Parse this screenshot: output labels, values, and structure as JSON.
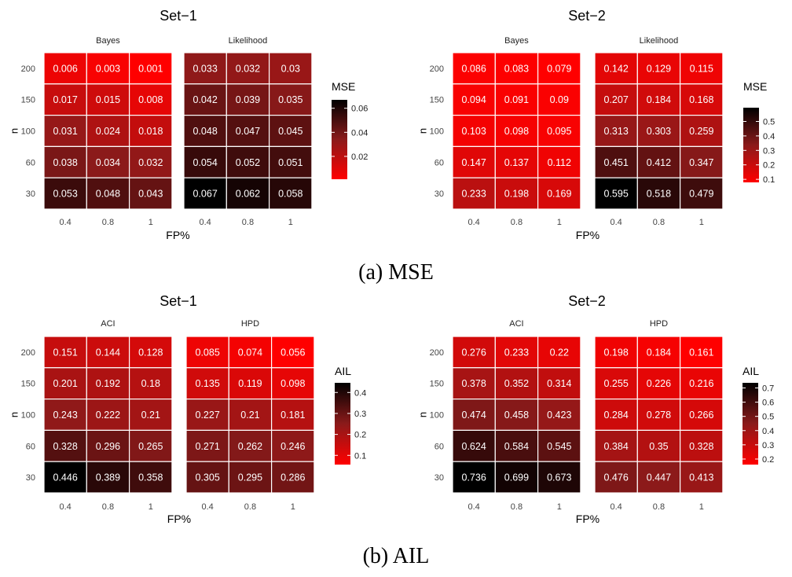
{
  "chart_data": [
    {
      "type": "heatmap",
      "title": "Set−1",
      "panels": [
        {
          "label": "Bayes",
          "values": [
            [
              0.006,
              0.003,
              0.001
            ],
            [
              0.017,
              0.015,
              0.008
            ],
            [
              0.031,
              0.024,
              0.018
            ],
            [
              0.038,
              0.034,
              0.032
            ],
            [
              0.053,
              0.048,
              0.043
            ]
          ],
          "labels": [
            [
              "0.006",
              "0.003",
              "0.001"
            ],
            [
              "0.017",
              "0.015",
              "0.008"
            ],
            [
              "0.031",
              "0.024",
              "0.018"
            ],
            [
              "0.038",
              "0.034",
              "0.032"
            ],
            [
              "0.053",
              "0.048",
              "0.043"
            ]
          ]
        },
        {
          "label": "Likelihood",
          "values": [
            [
              0.033,
              0.032,
              0.03
            ],
            [
              0.042,
              0.039,
              0.035
            ],
            [
              0.048,
              0.047,
              0.045
            ],
            [
              0.054,
              0.052,
              0.051
            ],
            [
              0.067,
              0.062,
              0.058
            ]
          ],
          "labels": [
            [
              "0.033",
              "0.032",
              "0.03"
            ],
            [
              "0.042",
              "0.039",
              "0.035"
            ],
            [
              "0.048",
              "0.047",
              "0.045"
            ],
            [
              "0.054",
              "0.052",
              "0.051"
            ],
            [
              "0.067",
              "0.062",
              "0.058"
            ]
          ]
        }
      ],
      "xlabel": "FP%",
      "ylabel": "n",
      "x_categories": [
        "0.4",
        "0.8",
        "1"
      ],
      "y_categories": [
        "200",
        "150",
        "100",
        "60",
        "30"
      ],
      "legend_title": "MSE",
      "legend_ticks": [
        {
          "value": 0.02,
          "label": "0.02"
        },
        {
          "value": 0.04,
          "label": "0.04"
        },
        {
          "value": 0.06,
          "label": "0.06"
        }
      ],
      "color_range": [
        0.001,
        0.067
      ],
      "color_low": "#ff0000",
      "color_mid": "#8b1a1a",
      "color_high": "#000000"
    },
    {
      "type": "heatmap",
      "title": "Set−2",
      "panels": [
        {
          "label": "Bayes",
          "values": [
            [
              0.086,
              0.083,
              0.079
            ],
            [
              0.094,
              0.091,
              0.09
            ],
            [
              0.103,
              0.098,
              0.095
            ],
            [
              0.147,
              0.137,
              0.112
            ],
            [
              0.233,
              0.198,
              0.169
            ]
          ],
          "labels": [
            [
              "0.086",
              "0.083",
              "0.079"
            ],
            [
              "0.094",
              "0.091",
              "0.09"
            ],
            [
              "0.103",
              "0.098",
              "0.095"
            ],
            [
              "0.147",
              "0.137",
              "0.112"
            ],
            [
              "0.233",
              "0.198",
              "0.169"
            ]
          ]
        },
        {
          "label": "Likelihood",
          "values": [
            [
              0.142,
              0.129,
              0.115
            ],
            [
              0.207,
              0.184,
              0.168
            ],
            [
              0.313,
              0.303,
              0.259
            ],
            [
              0.451,
              0.412,
              0.347
            ],
            [
              0.595,
              0.518,
              0.479
            ]
          ],
          "labels": [
            [
              "0.142",
              "0.129",
              "0.115"
            ],
            [
              "0.207",
              "0.184",
              "0.168"
            ],
            [
              "0.313",
              "0.303",
              "0.259"
            ],
            [
              "0.451",
              "0.412",
              "0.347"
            ],
            [
              "0.595",
              "0.518",
              "0.479"
            ]
          ]
        }
      ],
      "xlabel": "FP%",
      "ylabel": "n",
      "x_categories": [
        "0.4",
        "0.8",
        "1"
      ],
      "y_categories": [
        "200",
        "150",
        "100",
        "60",
        "30"
      ],
      "legend_title": "MSE",
      "legend_ticks": [
        {
          "value": 0.1,
          "label": "0.1"
        },
        {
          "value": 0.2,
          "label": "0.2"
        },
        {
          "value": 0.3,
          "label": "0.3"
        },
        {
          "value": 0.4,
          "label": "0.4"
        },
        {
          "value": 0.5,
          "label": "0.5"
        }
      ],
      "color_range": [
        0.079,
        0.595
      ],
      "color_low": "#ff0000",
      "color_mid": "#8b1a1a",
      "color_high": "#000000"
    },
    {
      "type": "heatmap",
      "title": "Set−1",
      "panels": [
        {
          "label": "ACI",
          "values": [
            [
              0.151,
              0.144,
              0.128
            ],
            [
              0.201,
              0.192,
              0.18
            ],
            [
              0.243,
              0.222,
              0.21
            ],
            [
              0.328,
              0.296,
              0.265
            ],
            [
              0.446,
              0.389,
              0.358
            ]
          ],
          "labels": [
            [
              "0.151",
              "0.144",
              "0.128"
            ],
            [
              "0.201",
              "0.192",
              "0.18"
            ],
            [
              "0.243",
              "0.222",
              "0.21"
            ],
            [
              "0.328",
              "0.296",
              "0.265"
            ],
            [
              "0.446",
              "0.389",
              "0.358"
            ]
          ]
        },
        {
          "label": "HPD",
          "values": [
            [
              0.085,
              0.074,
              0.056
            ],
            [
              0.135,
              0.119,
              0.098
            ],
            [
              0.227,
              0.21,
              0.181
            ],
            [
              0.271,
              0.262,
              0.246
            ],
            [
              0.305,
              0.295,
              0.286
            ]
          ],
          "labels": [
            [
              "0.085",
              "0.074",
              "0.056"
            ],
            [
              "0.135",
              "0.119",
              "0.098"
            ],
            [
              "0.227",
              "0.21",
              "0.181"
            ],
            [
              "0.271",
              "0.262",
              "0.246"
            ],
            [
              "0.305",
              "0.295",
              "0.286"
            ]
          ]
        }
      ],
      "xlabel": "FP%",
      "ylabel": "n",
      "x_categories": [
        "0.4",
        "0.8",
        "1"
      ],
      "y_categories": [
        "200",
        "150",
        "100",
        "60",
        "30"
      ],
      "legend_title": "AIL",
      "legend_ticks": [
        {
          "value": 0.1,
          "label": "0.1"
        },
        {
          "value": 0.2,
          "label": "0.2"
        },
        {
          "value": 0.3,
          "label": "0.3"
        },
        {
          "value": 0.4,
          "label": "0.4"
        }
      ],
      "color_range": [
        0.056,
        0.446
      ],
      "color_low": "#ff0000",
      "color_mid": "#8b1a1a",
      "color_high": "#000000"
    },
    {
      "type": "heatmap",
      "title": "Set−2",
      "panels": [
        {
          "label": "ACI",
          "values": [
            [
              0.276,
              0.233,
              0.22
            ],
            [
              0.378,
              0.352,
              0.314
            ],
            [
              0.474,
              0.458,
              0.423
            ],
            [
              0.624,
              0.584,
              0.545
            ],
            [
              0.736,
              0.699,
              0.673
            ]
          ],
          "labels": [
            [
              "0.276",
              "0.233",
              "0.22"
            ],
            [
              "0.378",
              "0.352",
              "0.314"
            ],
            [
              "0.474",
              "0.458",
              "0.423"
            ],
            [
              "0.624",
              "0.584",
              "0.545"
            ],
            [
              "0.736",
              "0.699",
              "0.673"
            ]
          ]
        },
        {
          "label": "HPD",
          "values": [
            [
              0.198,
              0.184,
              0.161
            ],
            [
              0.255,
              0.226,
              0.216
            ],
            [
              0.284,
              0.278,
              0.266
            ],
            [
              0.384,
              0.35,
              0.328
            ],
            [
              0.476,
              0.447,
              0.413
            ]
          ],
          "labels": [
            [
              "0.198",
              "0.184",
              "0.161"
            ],
            [
              "0.255",
              "0.226",
              "0.216"
            ],
            [
              "0.284",
              "0.278",
              "0.266"
            ],
            [
              "0.384",
              "0.35",
              "0.328"
            ],
            [
              "0.476",
              "0.447",
              "0.413"
            ]
          ]
        }
      ],
      "xlabel": "FP%",
      "ylabel": "n",
      "x_categories": [
        "0.4",
        "0.8",
        "1"
      ],
      "y_categories": [
        "200",
        "150",
        "100",
        "60",
        "30"
      ],
      "legend_title": "AIL",
      "legend_ticks": [
        {
          "value": 0.2,
          "label": "0.2"
        },
        {
          "value": 0.3,
          "label": "0.3"
        },
        {
          "value": 0.4,
          "label": "0.4"
        },
        {
          "value": 0.5,
          "label": "0.5"
        },
        {
          "value": 0.6,
          "label": "0.6"
        },
        {
          "value": 0.7,
          "label": "0.7"
        }
      ],
      "color_range": [
        0.161,
        0.736
      ],
      "color_low": "#ff0000",
      "color_mid": "#8b1a1a",
      "color_high": "#000000"
    }
  ],
  "captions": [
    "(a) MSE",
    "(b) AIL"
  ]
}
